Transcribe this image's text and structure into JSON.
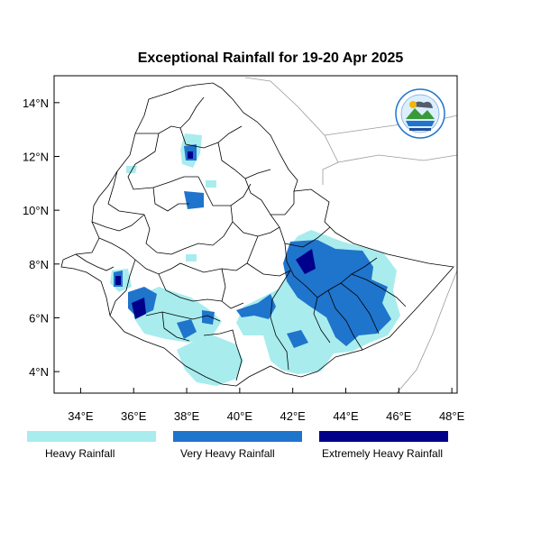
{
  "title": "Exceptional Rainfall for 19-20 Apr 2025",
  "map": {
    "lon_range": [
      33,
      48.2
    ],
    "lat_range": [
      3.2,
      15
    ],
    "x_ticks": [
      {
        "lon": 34,
        "label": "34°E"
      },
      {
        "lon": 36,
        "label": "36°E"
      },
      {
        "lon": 38,
        "label": "38°E"
      },
      {
        "lon": 40,
        "label": "40°E"
      },
      {
        "lon": 42,
        "label": "42°E"
      },
      {
        "lon": 44,
        "label": "44°E"
      },
      {
        "lon": 46,
        "label": "46°E"
      },
      {
        "lon": 48,
        "label": "48°E"
      }
    ],
    "y_ticks": [
      {
        "lat": 4,
        "label": "4°N"
      },
      {
        "lat": 6,
        "label": "6°N"
      },
      {
        "lat": 8,
        "label": "8°N"
      },
      {
        "lat": 10,
        "label": "10°N"
      },
      {
        "lat": 12,
        "label": "12°N"
      },
      {
        "lat": 14,
        "label": "14°N"
      }
    ],
    "colors": {
      "heavy": "#a8ecee",
      "very_heavy": "#1f74cc",
      "extremely_heavy": "#00008b",
      "boundary": "#000000",
      "neighbor_border": "#9a9a9a"
    }
  },
  "legend": [
    {
      "label": "Heavy Rainfall",
      "color": "#a8ecee"
    },
    {
      "label": "Very Heavy Rainfall",
      "color": "#1f74cc"
    },
    {
      "label": "Extremely Heavy Rainfall",
      "color": "#00008b"
    }
  ],
  "logo": {
    "icon": "meteorology-agency-logo"
  }
}
